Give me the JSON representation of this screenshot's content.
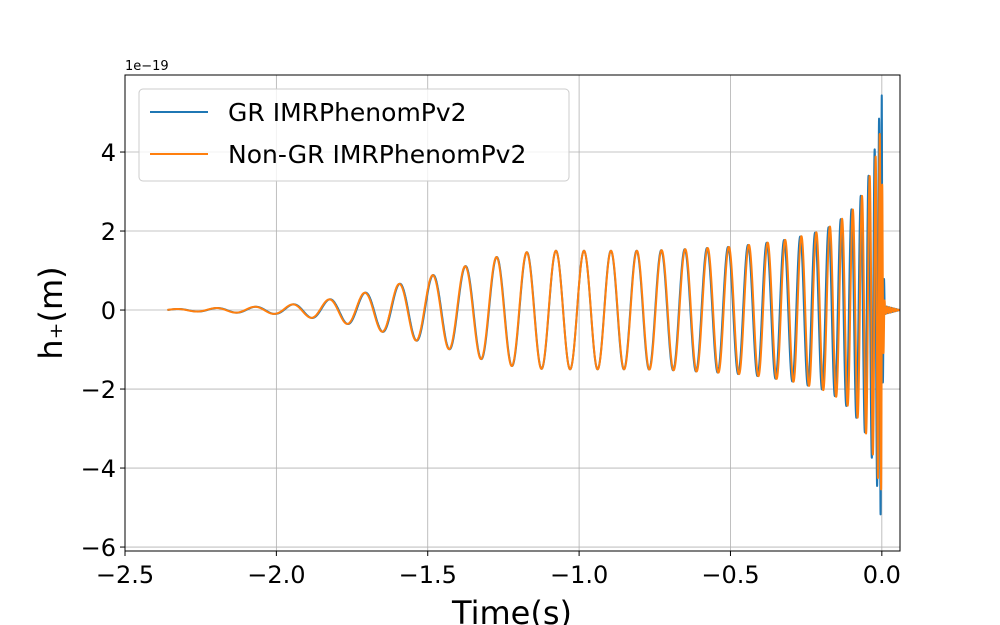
{
  "chart_data": {
    "type": "line",
    "title": "",
    "xlabel": "Time(s)",
    "ylabel": "h₊(m)",
    "y_offset_label": "1e−19",
    "y_scale_factor": 1e-19,
    "xlim": [
      -2.5,
      0.06
    ],
    "ylim": [
      -6.1,
      5.95
    ],
    "x_ticks": [
      -2.5,
      -2.0,
      -1.5,
      -1.0,
      -0.5,
      0.0
    ],
    "x_tick_labels": [
      "−2.5",
      "−2.0",
      "−1.5",
      "−1.0",
      "−0.5",
      "0.0"
    ],
    "y_ticks": [
      -6,
      -4,
      -2,
      0,
      2,
      4
    ],
    "y_tick_labels": [
      "−6",
      "−4",
      "−2",
      "0",
      "2",
      "4"
    ],
    "grid": true,
    "legend_position": "top-left",
    "series": [
      {
        "name": "GR IMRPhenomPv2",
        "color": "#1f77b4",
        "envelope_t": [
          -2.36,
          -2.2,
          -2.0,
          -1.9,
          -1.8,
          -1.7,
          -1.6,
          -1.5,
          -1.4,
          -1.3,
          -1.2,
          -1.1,
          -1.0,
          -0.9,
          -0.8,
          -0.7,
          -0.6,
          -0.5,
          -0.4,
          -0.3,
          -0.2,
          -0.15,
          -0.1,
          -0.06,
          -0.04,
          -0.02,
          -0.01,
          0.0,
          0.003,
          0.01,
          0.06
        ],
        "envelope_amplitude": [
          0.02,
          0.05,
          0.1,
          0.18,
          0.3,
          0.45,
          0.65,
          0.85,
          1.05,
          1.3,
          1.45,
          1.5,
          1.5,
          1.5,
          1.5,
          1.52,
          1.56,
          1.6,
          1.68,
          1.8,
          2.0,
          2.2,
          2.55,
          3.0,
          3.5,
          4.2,
          4.8,
          5.45,
          2.0,
          0.1,
          0.0
        ],
        "cycles_per_second_start": 7.5,
        "cycles_per_second_end": 125
      },
      {
        "name": "Non-GR IMRPhenomPv2",
        "color": "#ff7f0e",
        "envelope_t": [
          -2.36,
          -2.2,
          -2.0,
          -1.9,
          -1.8,
          -1.7,
          -1.6,
          -1.5,
          -1.4,
          -1.3,
          -1.2,
          -1.1,
          -1.0,
          -0.9,
          -0.8,
          -0.7,
          -0.6,
          -0.5,
          -0.4,
          -0.3,
          -0.2,
          -0.15,
          -0.1,
          -0.06,
          -0.04,
          -0.02,
          -0.01,
          0.0,
          0.003,
          0.01,
          0.06
        ],
        "envelope_amplitude": [
          0.02,
          0.05,
          0.1,
          0.18,
          0.3,
          0.45,
          0.65,
          0.85,
          1.05,
          1.3,
          1.45,
          1.5,
          1.5,
          1.5,
          1.5,
          1.52,
          1.56,
          1.6,
          1.68,
          1.8,
          2.0,
          2.2,
          2.5,
          2.95,
          3.4,
          3.9,
          4.4,
          4.6,
          1.7,
          0.1,
          0.0
        ],
        "cycles_per_second_start": 7.5,
        "cycles_per_second_end": 121
      }
    ]
  }
}
